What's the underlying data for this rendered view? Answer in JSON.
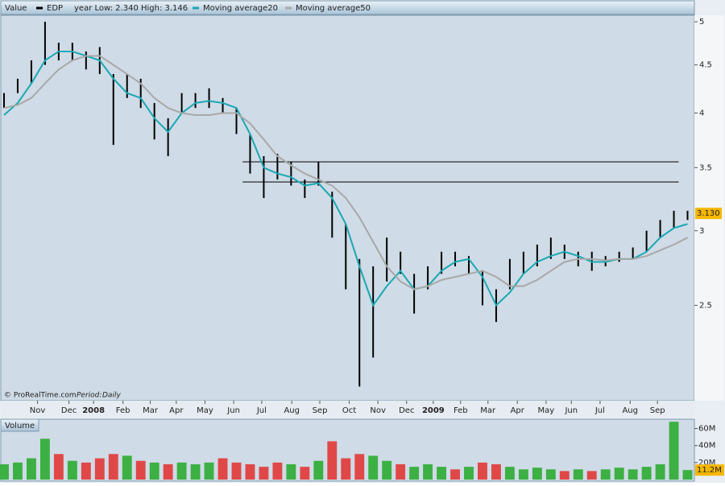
{
  "chart_data": [
    {
      "type": "hilo",
      "panel_label": "Value",
      "note": "year Low: 2.340 High: 3.146",
      "credit": "© ProRealTime.com",
      "period_label": "Period:",
      "period": "Daily",
      "x": [
        0,
        2,
        4,
        6,
        8,
        10,
        12,
        14,
        16,
        18,
        20,
        22,
        24,
        26,
        28,
        30,
        32,
        34,
        36,
        38,
        40,
        42,
        44,
        46,
        48,
        50,
        52,
        54,
        56,
        58,
        60,
        62,
        64,
        66,
        68,
        70,
        72,
        74,
        76,
        78,
        80,
        82,
        84,
        86,
        88,
        90,
        92,
        94,
        96,
        98,
        100
      ],
      "series": [
        {
          "name": "EDP",
          "color": "#000000",
          "high": [
            4.2,
            4.35,
            4.55,
            5.0,
            4.75,
            4.75,
            4.65,
            4.7,
            4.4,
            4.4,
            4.35,
            4.1,
            3.95,
            4.2,
            4.2,
            4.25,
            4.15,
            4.05,
            3.8,
            3.6,
            3.62,
            3.55,
            3.4,
            3.55,
            3.3,
            3.05,
            2.8,
            2.75,
            2.95,
            2.85,
            2.7,
            2.75,
            2.85,
            2.85,
            2.82,
            2.72,
            2.6,
            2.8,
            2.85,
            2.9,
            2.95,
            2.9,
            2.85,
            2.85,
            2.82,
            2.85,
            2.88,
            3.0,
            3.08,
            3.15,
            3.15
          ],
          "low": [
            4.05,
            4.2,
            4.3,
            4.5,
            4.55,
            4.55,
            4.45,
            4.4,
            3.7,
            4.15,
            4.05,
            3.75,
            3.6,
            4.0,
            4.05,
            4.05,
            4.0,
            3.8,
            3.45,
            3.25,
            3.4,
            3.35,
            3.25,
            3.35,
            2.95,
            2.6,
            2.05,
            2.2,
            2.65,
            2.7,
            2.45,
            2.6,
            2.7,
            2.75,
            2.7,
            2.5,
            2.4,
            2.6,
            2.7,
            2.75,
            2.8,
            2.8,
            2.75,
            2.72,
            2.75,
            2.78,
            2.8,
            2.85,
            2.95,
            3.02,
            3.08
          ]
        },
        {
          "name": "Moving average20",
          "color": "#1aa8b4",
          "values": [
            3.98,
            4.1,
            4.3,
            4.55,
            4.65,
            4.65,
            4.6,
            4.55,
            4.35,
            4.2,
            4.15,
            3.95,
            3.82,
            4.0,
            4.1,
            4.12,
            4.1,
            4.05,
            3.8,
            3.5,
            3.45,
            3.42,
            3.35,
            3.37,
            3.25,
            3.05,
            2.75,
            2.5,
            2.62,
            2.72,
            2.6,
            2.62,
            2.72,
            2.78,
            2.8,
            2.68,
            2.5,
            2.58,
            2.7,
            2.78,
            2.82,
            2.85,
            2.82,
            2.78,
            2.78,
            2.8,
            2.8,
            2.85,
            2.95,
            3.02,
            3.05
          ]
        },
        {
          "name": "Moving average50",
          "color": "#a8a8a8",
          "values": [
            4.05,
            4.08,
            4.15,
            4.3,
            4.45,
            4.55,
            4.6,
            4.6,
            4.5,
            4.4,
            4.3,
            4.15,
            4.05,
            4.0,
            3.98,
            3.98,
            4.0,
            4.0,
            3.9,
            3.75,
            3.6,
            3.52,
            3.45,
            3.4,
            3.35,
            3.25,
            3.1,
            2.92,
            2.75,
            2.65,
            2.6,
            2.62,
            2.66,
            2.68,
            2.7,
            2.72,
            2.68,
            2.62,
            2.62,
            2.66,
            2.72,
            2.78,
            2.8,
            2.8,
            2.79,
            2.8,
            2.8,
            2.82,
            2.86,
            2.9,
            2.95
          ]
        }
      ],
      "hlines": [
        {
          "value": 3.55,
          "x": [
            34.9,
            98.7
          ]
        },
        {
          "value": 3.38,
          "x": [
            34.9,
            98.7
          ]
        }
      ],
      "last_value": {
        "value": 3.13,
        "label": "3.130"
      },
      "log_y": true,
      "xlim": [
        0,
        101
      ],
      "ylim": [
        1.98,
        5.07
      ],
      "yticks": [
        2.5,
        3,
        3.5,
        4,
        4.5,
        5
      ],
      "xticks": [
        {
          "value": 4.9,
          "label": "Nov"
        },
        {
          "value": 9.5,
          "label": "Dec"
        },
        {
          "value": 13.1,
          "label": "2008"
        },
        {
          "value": 17.4,
          "label": "Feb"
        },
        {
          "value": 21.4,
          "label": "Mar"
        },
        {
          "value": 25.2,
          "label": "Apr"
        },
        {
          "value": 29.4,
          "label": "May"
        },
        {
          "value": 33.6,
          "label": "Jun"
        },
        {
          "value": 37.7,
          "label": "Jul"
        },
        {
          "value": 42.1,
          "label": "Aug"
        },
        {
          "value": 46.2,
          "label": "Sep"
        },
        {
          "value": 50.5,
          "label": "Oct"
        },
        {
          "value": 54.7,
          "label": "Nov"
        },
        {
          "value": 58.9,
          "label": "Dec"
        },
        {
          "value": 62.8,
          "label": "2009"
        },
        {
          "value": 66.8,
          "label": "Feb"
        },
        {
          "value": 70.8,
          "label": "Mar"
        },
        {
          "value": 75.1,
          "label": "Apr"
        },
        {
          "value": 79.3,
          "label": "May"
        },
        {
          "value": 83.0,
          "label": "Jun"
        },
        {
          "value": 87.2,
          "label": "Jul"
        },
        {
          "value": 91.6,
          "label": "Aug"
        },
        {
          "value": 95.6,
          "label": "Sep"
        }
      ]
    },
    {
      "type": "bar",
      "panel_label": "Volume",
      "x": [
        0,
        2,
        4,
        6,
        8,
        10,
        12,
        14,
        16,
        18,
        20,
        22,
        24,
        26,
        28,
        30,
        32,
        34,
        36,
        38,
        40,
        42,
        44,
        46,
        48,
        50,
        52,
        54,
        56,
        58,
        60,
        62,
        64,
        66,
        68,
        70,
        72,
        74,
        76,
        78,
        80,
        82,
        84,
        86,
        88,
        90,
        92,
        94,
        96,
        98,
        100
      ],
      "values": [
        18,
        20,
        25,
        48,
        30,
        22,
        20,
        25,
        30,
        28,
        22,
        20,
        18,
        20,
        18,
        20,
        25,
        20,
        18,
        15,
        20,
        18,
        15,
        22,
        45,
        25,
        30,
        28,
        22,
        18,
        15,
        18,
        15,
        12,
        15,
        20,
        18,
        15,
        12,
        14,
        12,
        10,
        12,
        10,
        12,
        14,
        12,
        15,
        18,
        68,
        11.2
      ],
      "colors": [
        "#3cb043",
        "#3cb043",
        "#3cb043",
        "#3cb043",
        "#e04848",
        "#3cb043",
        "#e04848",
        "#e04848",
        "#e04848",
        "#3cb043",
        "#e04848",
        "#3cb043",
        "#e04848",
        "#3cb043",
        "#3cb043",
        "#3cb043",
        "#e04848",
        "#e04848",
        "#e04848",
        "#e04848",
        "#e04848",
        "#3cb043",
        "#e04848",
        "#3cb043",
        "#e04848",
        "#e04848",
        "#e04848",
        "#3cb043",
        "#3cb043",
        "#e04848",
        "#3cb043",
        "#3cb043",
        "#3cb043",
        "#e04848",
        "#3cb043",
        "#e04848",
        "#e04848",
        "#3cb043",
        "#3cb043",
        "#3cb043",
        "#3cb043",
        "#e04848",
        "#3cb043",
        "#e04848",
        "#3cb043",
        "#3cb043",
        "#3cb043",
        "#3cb043",
        "#3cb043",
        "#3cb043",
        "#3cb043"
      ],
      "last_value": {
        "value": 11.2,
        "label": "11.2M"
      },
      "xlim": [
        0,
        101
      ],
      "ylim": [
        0,
        70
      ],
      "yticks": [
        {
          "value": 20,
          "label": "20M"
        },
        {
          "value": 40,
          "label": "40M"
        },
        {
          "value": 60,
          "label": "60M"
        }
      ]
    }
  ]
}
